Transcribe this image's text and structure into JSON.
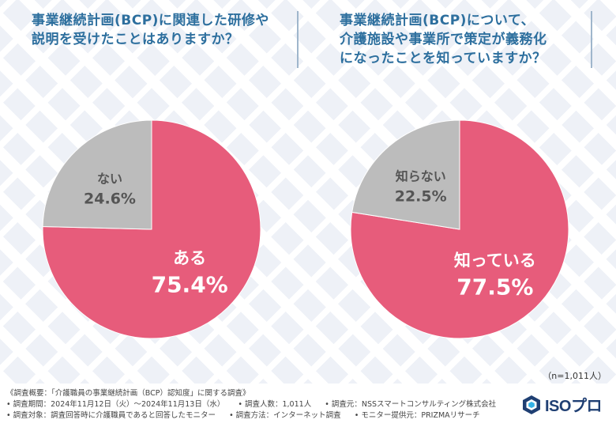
{
  "chart_data": [
    {
      "type": "pie",
      "title": "事業継続計画(BCP)に関連した研修や\n説明を受けたことはありますか？",
      "slices": [
        {
          "label": "ある",
          "value": 75.4,
          "value_text": "75.4%",
          "color": "#e75c7b"
        },
        {
          "label": "ない",
          "value": 24.6,
          "value_text": "24.6%",
          "color": "#bcbcbc"
        }
      ]
    },
    {
      "type": "pie",
      "title": "事業継続計画(BCP)について、\n介護施設や事業所で策定が義務化\nになったことを知っていますか？",
      "slices": [
        {
          "label": "知っている",
          "value": 77.5,
          "value_text": "77.5%",
          "color": "#e75c7b"
        },
        {
          "label": "知らない",
          "value": 22.5,
          "value_text": "22.5%",
          "color": "#bcbcbc"
        }
      ]
    }
  ],
  "sample_size": "（n=1,011人）",
  "footer": {
    "line1": "《調査概要：「介護職員の事業継続計画（BCP）認知度」に関する調査》",
    "line2": [
      "• 調査期間：2024年11月12日（火）～2024年11月13日（水）",
      "• 調査人数：1,011人",
      "• 調査元：NSSスマートコンサルティング株式会社"
    ],
    "line3": [
      "• 調査対象：調査回答時に介護職員であると回答したモニター",
      "• 調査方法：インターネット調査",
      "• モニター提供元：PRIZMAリサーチ"
    ]
  },
  "logo": {
    "text": "ISOプロ",
    "icon": "hexagon-logo-icon"
  }
}
